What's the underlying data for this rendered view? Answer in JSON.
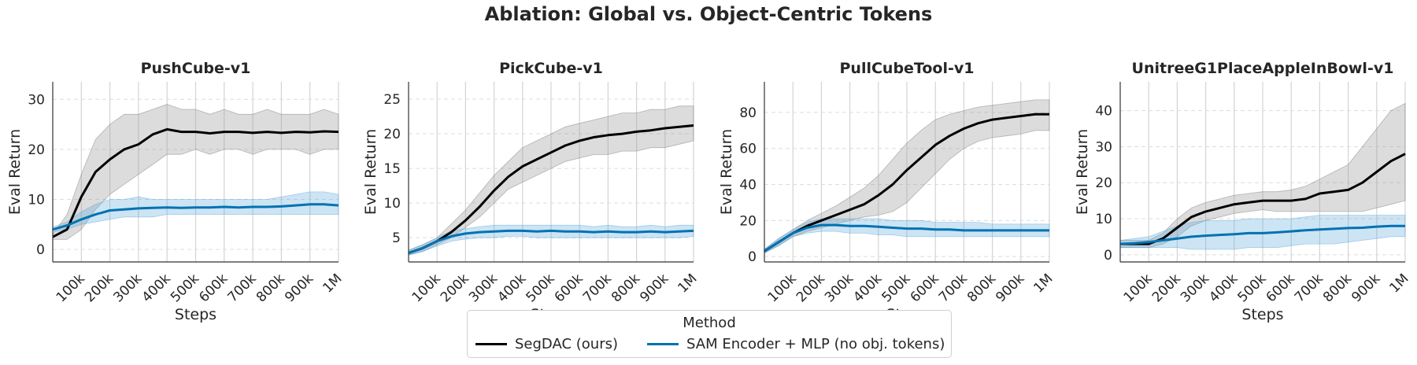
{
  "suptitle": "Ablation: Global vs. Object-Centric Tokens",
  "legend": {
    "title": "Method",
    "items": [
      {
        "label": "SegDAC (ours)",
        "color": "#000000"
      },
      {
        "label": "SAM Encoder + MLP (no obj. tokens)",
        "color": "#0072b2"
      }
    ]
  },
  "chart_data": [
    {
      "type": "line",
      "title": "PushCube-v1",
      "xlabel": "Steps",
      "ylabel": "Eval Return",
      "xlim": [
        0,
        1000000
      ],
      "ylim": [
        -2.5,
        33.5
      ],
      "yticks": [
        0,
        10,
        20,
        30
      ],
      "xticks": [
        100000,
        200000,
        300000,
        400000,
        500000,
        600000,
        700000,
        800000,
        900000,
        1000000
      ],
      "xticklabels": [
        "100k",
        "200k",
        "300k",
        "400k",
        "500k",
        "600k",
        "700k",
        "800k",
        "900k",
        "1M"
      ],
      "grid": true,
      "series": [
        {
          "name": "SegDAC (ours)",
          "color": "#000000",
          "x": [
            0,
            50000,
            100000,
            150000,
            200000,
            250000,
            300000,
            350000,
            400000,
            450000,
            500000,
            550000,
            600000,
            650000,
            700000,
            750000,
            800000,
            850000,
            900000,
            950000,
            1000000
          ],
          "y": [
            2.5,
            4,
            10.5,
            15.5,
            18,
            20,
            21,
            23,
            24,
            23.5,
            23.5,
            23.2,
            23.5,
            23.5,
            23.3,
            23.5,
            23.3,
            23.5,
            23.4,
            23.6,
            23.5
          ],
          "low": [
            2,
            2,
            4,
            8,
            11,
            13,
            15,
            17,
            19,
            19,
            20,
            19,
            20,
            20,
            19,
            20,
            20,
            20,
            19,
            20,
            20
          ],
          "high": [
            3,
            7,
            15,
            22,
            25,
            27,
            27,
            28,
            29,
            28,
            28,
            27,
            28,
            27,
            27,
            28,
            27,
            27,
            27,
            28,
            27
          ]
        },
        {
          "name": "SAM Encoder + MLP (no obj. tokens)",
          "color": "#0072b2",
          "x": [
            0,
            50000,
            100000,
            150000,
            200000,
            250000,
            300000,
            350000,
            400000,
            450000,
            500000,
            550000,
            600000,
            650000,
            700000,
            750000,
            800000,
            850000,
            900000,
            950000,
            1000000
          ],
          "y": [
            4,
            4.8,
            6,
            7,
            7.8,
            8,
            8.2,
            8.3,
            8.4,
            8.3,
            8.4,
            8.4,
            8.5,
            8.4,
            8.5,
            8.5,
            8.6,
            8.8,
            9,
            9,
            8.8
          ],
          "low": [
            3.5,
            4,
            5,
            5.5,
            6,
            6.5,
            6.5,
            6.5,
            7,
            7,
            7,
            7,
            7,
            7,
            7,
            7,
            7,
            7,
            7,
            7,
            7
          ],
          "high": [
            4.5,
            5.5,
            7.5,
            9,
            10,
            10,
            10.5,
            10,
            10,
            10,
            10,
            10,
            10,
            10,
            10,
            10,
            10.5,
            11,
            11.5,
            11.5,
            11
          ]
        }
      ]
    },
    {
      "type": "line",
      "title": "PickCube-v1",
      "xlabel": "Steps",
      "ylabel": "Eval Return",
      "xlim": [
        0,
        1000000
      ],
      "ylim": [
        1.5,
        27.5
      ],
      "yticks": [
        5,
        10,
        15,
        20,
        25
      ],
      "xticks": [
        100000,
        200000,
        300000,
        400000,
        500000,
        600000,
        700000,
        800000,
        900000,
        1000000
      ],
      "xticklabels": [
        "100k",
        "200k",
        "300k",
        "400k",
        "500k",
        "600k",
        "700k",
        "800k",
        "900k",
        "1M"
      ],
      "grid": true,
      "series": [
        {
          "name": "SegDAC (ours)",
          "color": "#000000",
          "x": [
            0,
            50000,
            100000,
            150000,
            200000,
            250000,
            300000,
            350000,
            400000,
            450000,
            500000,
            550000,
            600000,
            650000,
            700000,
            750000,
            800000,
            850000,
            900000,
            950000,
            1000000
          ],
          "y": [
            2.8,
            3.5,
            4.5,
            5.8,
            7.5,
            9.5,
            11.8,
            13.8,
            15.3,
            16.3,
            17.3,
            18.3,
            19,
            19.5,
            19.8,
            20,
            20.3,
            20.5,
            20.8,
            21,
            21.2
          ],
          "low": [
            2.5,
            3,
            4,
            5,
            6.5,
            8,
            10,
            12,
            13,
            14,
            15,
            16,
            16.5,
            17,
            17,
            17.5,
            17.5,
            18,
            18,
            18.5,
            19
          ],
          "high": [
            3.2,
            4,
            5,
            7,
            9,
            11.5,
            14,
            16,
            18,
            19,
            20,
            21,
            21.5,
            22,
            22.5,
            23,
            23,
            23.5,
            23.5,
            24,
            24
          ]
        },
        {
          "name": "SAM Encoder + MLP (no obj. tokens)",
          "color": "#0072b2",
          "x": [
            0,
            50000,
            100000,
            150000,
            200000,
            250000,
            300000,
            350000,
            400000,
            450000,
            500000,
            550000,
            600000,
            650000,
            700000,
            750000,
            800000,
            850000,
            900000,
            950000,
            1000000
          ],
          "y": [
            2.8,
            3.5,
            4.5,
            5.2,
            5.6,
            5.8,
            5.9,
            6,
            6,
            5.9,
            6,
            5.9,
            5.9,
            5.8,
            5.9,
            5.8,
            5.8,
            5.9,
            5.8,
            5.9,
            6
          ],
          "low": [
            2.5,
            3,
            3.8,
            4.5,
            4.8,
            5,
            5,
            5.2,
            5.2,
            5,
            5,
            5,
            5,
            5,
            5,
            5,
            5,
            5,
            5,
            5,
            5.2
          ],
          "high": [
            3.2,
            4,
            5,
            6,
            6.3,
            6.6,
            6.8,
            6.8,
            6.8,
            6.8,
            6.8,
            6.8,
            6.8,
            6.6,
            6.8,
            6.6,
            6.6,
            6.8,
            6.6,
            6.8,
            6.8
          ]
        }
      ]
    },
    {
      "type": "line",
      "title": "PullCubeTool-v1",
      "xlabel": "Steps",
      "ylabel": "Eval Return",
      "xlim": [
        0,
        1000000
      ],
      "ylim": [
        -3,
        97
      ],
      "yticks": [
        0,
        20,
        40,
        60,
        80
      ],
      "xticks": [
        100000,
        200000,
        300000,
        400000,
        500000,
        600000,
        700000,
        800000,
        900000,
        1000000
      ],
      "xticklabels": [
        "100k",
        "200k",
        "300k",
        "400k",
        "500k",
        "600k",
        "700k",
        "800k",
        "900k",
        "1M"
      ],
      "grid": true,
      "series": [
        {
          "name": "SegDAC (ours)",
          "color": "#000000",
          "x": [
            0,
            50000,
            100000,
            150000,
            200000,
            250000,
            300000,
            350000,
            400000,
            450000,
            500000,
            550000,
            600000,
            650000,
            700000,
            750000,
            800000,
            850000,
            900000,
            950000,
            1000000
          ],
          "y": [
            3,
            8,
            13,
            17,
            20,
            23,
            26,
            29,
            34,
            40,
            48,
            55,
            62,
            67,
            71,
            74,
            76,
            77,
            78,
            79,
            79
          ],
          "low": [
            2,
            6,
            11,
            14,
            16,
            18,
            20,
            22,
            23,
            25,
            30,
            38,
            46,
            54,
            60,
            64,
            66,
            67,
            68,
            70,
            70
          ],
          "high": [
            4,
            10,
            15,
            20,
            24,
            28,
            33,
            38,
            45,
            54,
            63,
            70,
            76,
            79,
            81,
            83,
            84,
            85,
            86,
            87,
            87
          ]
        },
        {
          "name": "SAM Encoder + MLP (no obj. tokens)",
          "color": "#0072b2",
          "x": [
            0,
            50000,
            100000,
            150000,
            200000,
            250000,
            300000,
            350000,
            400000,
            450000,
            500000,
            550000,
            600000,
            650000,
            700000,
            750000,
            800000,
            850000,
            900000,
            950000,
            1000000
          ],
          "y": [
            3,
            8,
            13,
            16,
            17.5,
            17.5,
            17,
            17,
            16.5,
            16,
            15.5,
            15.5,
            15,
            15,
            14.5,
            14.5,
            14.5,
            14.5,
            14.5,
            14.5,
            14.5
          ],
          "low": [
            2,
            6,
            11,
            13,
            14,
            14,
            13,
            13,
            12,
            12,
            11,
            11,
            11,
            11,
            11,
            11,
            11,
            11,
            11,
            11,
            11
          ],
          "high": [
            4,
            10,
            15,
            19,
            21,
            21,
            21,
            21,
            21,
            20,
            20,
            20,
            19,
            19,
            19,
            19,
            18,
            18,
            18,
            18,
            18
          ]
        }
      ]
    },
    {
      "type": "line",
      "title": "UnitreeG1PlaceAppleInBowl-v1",
      "xlabel": "Steps",
      "ylabel": "Eval Return",
      "xlim": [
        0,
        1000000
      ],
      "ylim": [
        -2,
        48
      ],
      "yticks": [
        0,
        10,
        20,
        30,
        40
      ],
      "xticks": [
        100000,
        200000,
        300000,
        400000,
        500000,
        600000,
        700000,
        800000,
        900000,
        1000000
      ],
      "xticklabels": [
        "100k",
        "200k",
        "300k",
        "400k",
        "500k",
        "600k",
        "700k",
        "800k",
        "900k",
        "1M"
      ],
      "grid": true,
      "series": [
        {
          "name": "SegDAC (ours)",
          "color": "#000000",
          "x": [
            0,
            50000,
            100000,
            150000,
            200000,
            250000,
            300000,
            350000,
            400000,
            450000,
            500000,
            550000,
            600000,
            650000,
            700000,
            750000,
            800000,
            850000,
            900000,
            950000,
            1000000
          ],
          "y": [
            3,
            3,
            3,
            4.5,
            7.5,
            10.5,
            12,
            13,
            14,
            14.5,
            15,
            15,
            15,
            15.5,
            17,
            17.5,
            18,
            20,
            23,
            26,
            28
          ],
          "low": [
            2,
            2,
            2,
            3,
            5,
            8,
            9.5,
            10.5,
            11.5,
            12,
            12.5,
            12,
            12,
            12,
            12,
            12,
            12,
            12,
            13,
            14,
            15
          ],
          "high": [
            4,
            4,
            4,
            6,
            10,
            13,
            14.5,
            15.5,
            16.5,
            17,
            17.5,
            17.5,
            18,
            19,
            21,
            23,
            25,
            30,
            35,
            40,
            42
          ]
        },
        {
          "name": "SAM Encoder + MLP (no obj. tokens)",
          "color": "#0072b2",
          "x": [
            0,
            50000,
            100000,
            150000,
            200000,
            250000,
            300000,
            350000,
            400000,
            450000,
            500000,
            550000,
            600000,
            650000,
            700000,
            750000,
            800000,
            850000,
            900000,
            950000,
            1000000
          ],
          "y": [
            3,
            3.2,
            3.5,
            4,
            4.5,
            5,
            5.3,
            5.5,
            5.7,
            6,
            6,
            6.2,
            6.5,
            6.8,
            7,
            7.2,
            7.4,
            7.5,
            7.8,
            8,
            8
          ],
          "low": [
            2,
            2,
            2,
            2,
            2,
            1.5,
            1.5,
            1.5,
            1.5,
            2,
            2,
            2,
            2.5,
            3,
            3,
            3,
            3.5,
            4,
            4.5,
            5,
            5
          ],
          "high": [
            4,
            4.5,
            5,
            6.5,
            8,
            9,
            9.5,
            9.5,
            9.5,
            10,
            10,
            10,
            10,
            10.5,
            11,
            11,
            11,
            11,
            11,
            11,
            11
          ]
        }
      ]
    }
  ]
}
